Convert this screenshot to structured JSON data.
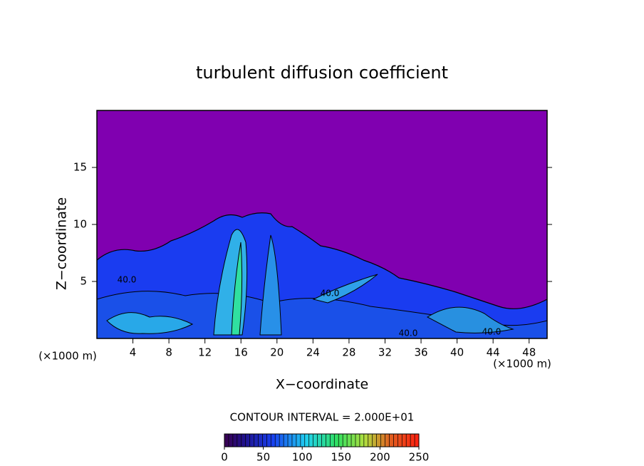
{
  "chart_data": {
    "type": "contour",
    "title": "turbulent diffusion coefficient",
    "xlabel": "X−coordinate",
    "ylabel": "Z−coordinate",
    "x_unit": "(×1000 m)",
    "y_unit": "(×1000 m)",
    "xlim": [
      0,
      50
    ],
    "xticks": [
      4,
      8,
      12,
      16,
      20,
      24,
      28,
      32,
      36,
      40,
      44,
      48
    ],
    "ylim": [
      0,
      20
    ],
    "yticks": [
      5,
      10,
      15
    ],
    "contour_labels": [
      "40.0",
      "40.0",
      "40.0",
      "40.0"
    ],
    "contour_interval": "CONTOUR INTERVAL = 2.000E+01",
    "clim": [
      0,
      250
    ],
    "cticks": [
      0,
      50,
      100,
      150,
      200,
      250
    ]
  }
}
